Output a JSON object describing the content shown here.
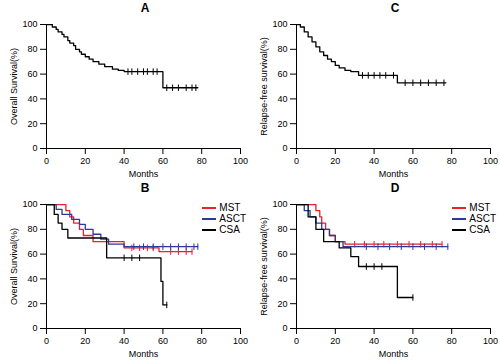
{
  "chart_data": [
    {
      "type": "line",
      "title": "A",
      "x_label": "Months",
      "y_label": "Overall Survival(%)",
      "xlim": [
        0,
        100
      ],
      "ylim": [
        0,
        100
      ],
      "xticks": [
        0,
        20,
        40,
        60,
        80,
        100
      ],
      "yticks": [
        0,
        20,
        40,
        60,
        80,
        100
      ],
      "series": [
        {
          "color": "#000000",
          "line_style": "step",
          "marker": "tick",
          "x": [
            0,
            3,
            5,
            6,
            8,
            9,
            11,
            12,
            14,
            15,
            17,
            18,
            20,
            22,
            24,
            27,
            30,
            34,
            37,
            40,
            60,
            78
          ],
          "values": [
            100,
            98,
            96,
            94,
            92,
            90,
            87,
            85,
            83,
            80,
            78,
            76,
            74,
            72,
            70,
            68,
            66,
            64,
            63,
            62,
            49,
            49
          ],
          "censored_x": [
            42,
            44,
            47,
            50,
            52,
            55,
            57,
            62,
            65,
            68,
            72,
            75,
            77
          ],
          "censored_values": [
            62,
            62,
            62,
            62,
            62,
            62,
            62,
            49,
            49,
            49,
            49,
            49,
            49
          ]
        }
      ]
    },
    {
      "type": "line",
      "title": "C",
      "x_label": "Months",
      "y_label": "Relapse-free survival(%)",
      "xlim": [
        0,
        100
      ],
      "ylim": [
        0,
        100
      ],
      "xticks": [
        0,
        20,
        40,
        60,
        80,
        100
      ],
      "yticks": [
        0,
        20,
        40,
        60,
        80,
        100
      ],
      "series": [
        {
          "color": "#000000",
          "line_style": "step",
          "marker": "tick",
          "x": [
            0,
            2,
            4,
            6,
            8,
            10,
            12,
            14,
            16,
            18,
            20,
            22,
            25,
            28,
            32,
            52,
            77
          ],
          "values": [
            100,
            98,
            94,
            90,
            86,
            82,
            78,
            75,
            72,
            70,
            67,
            65,
            63,
            62,
            59,
            53,
            53
          ],
          "censored_x": [
            34,
            37,
            40,
            43,
            46,
            50,
            56,
            60,
            64,
            68,
            72,
            76
          ],
          "censored_values": [
            59,
            59,
            59,
            59,
            59,
            59,
            53,
            53,
            53,
            53,
            53,
            53
          ]
        }
      ]
    },
    {
      "type": "line",
      "title": "B",
      "x_label": "Months",
      "y_label": "Overall Survival(%)",
      "legend": "top-right",
      "xlim": [
        0,
        100
      ],
      "ylim": [
        0,
        100
      ],
      "xticks": [
        0,
        20,
        40,
        60,
        80,
        100
      ],
      "yticks": [
        0,
        20,
        40,
        60,
        80,
        100
      ],
      "series": [
        {
          "name": "MST",
          "color": "#e8202a",
          "line_style": "step",
          "marker": "tick",
          "x": [
            0,
            10,
            12,
            14,
            17,
            19,
            24,
            30,
            40,
            58,
            75
          ],
          "values": [
            100,
            95,
            90,
            85,
            80,
            75,
            70,
            70,
            65,
            62,
            62
          ],
          "censored_x": [
            44,
            48,
            52,
            55,
            64,
            68,
            72,
            75
          ],
          "censored_values": [
            65,
            65,
            65,
            65,
            62,
            62,
            62,
            62
          ]
        },
        {
          "name": "ASCT",
          "color": "#2b3a9a",
          "line_style": "step",
          "marker": "tick",
          "x": [
            0,
            5,
            8,
            13,
            17,
            20,
            24,
            28,
            32,
            40,
            78
          ],
          "values": [
            100,
            96,
            92,
            88,
            84,
            80,
            76,
            72,
            68,
            66,
            66
          ],
          "censored_x": [
            45,
            50,
            55,
            60,
            64,
            68,
            72,
            76,
            78
          ],
          "censored_values": [
            66,
            66,
            66,
            66,
            66,
            66,
            66,
            66,
            66
          ]
        },
        {
          "name": "CSA",
          "color": "#000000",
          "line_style": "step",
          "marker": "tick",
          "x": [
            0,
            4,
            6,
            8,
            11,
            31,
            58,
            59,
            60,
            62
          ],
          "values": [
            100,
            92,
            85,
            80,
            73,
            57,
            57,
            38,
            19,
            19
          ],
          "censored_x": [
            40,
            44,
            48,
            62
          ],
          "censored_values": [
            57,
            57,
            57,
            19
          ]
        }
      ]
    },
    {
      "type": "line",
      "title": "D",
      "x_label": "Months",
      "y_label": "Relapse-free survival(%)",
      "legend": "top-right",
      "xlim": [
        0,
        100
      ],
      "ylim": [
        0,
        100
      ],
      "xticks": [
        0,
        20,
        40,
        60,
        80,
        100
      ],
      "yticks": [
        0,
        20,
        40,
        60,
        80,
        100
      ],
      "series": [
        {
          "name": "MST",
          "color": "#e8202a",
          "line_style": "step",
          "marker": "tick",
          "x": [
            0,
            10,
            12,
            13,
            15,
            17,
            20,
            25,
            75
          ],
          "values": [
            100,
            95,
            90,
            85,
            80,
            75,
            70,
            68,
            68
          ],
          "censored_x": [
            30,
            35,
            40,
            45,
            52,
            58,
            64,
            70,
            75
          ],
          "censored_values": [
            68,
            68,
            68,
            68,
            68,
            68,
            68,
            68,
            68
          ]
        },
        {
          "name": "ASCT",
          "color": "#2b3a9a",
          "line_style": "step",
          "marker": "tick",
          "x": [
            0,
            4,
            7,
            10,
            13,
            17,
            20,
            24,
            78
          ],
          "values": [
            100,
            95,
            90,
            85,
            80,
            75,
            70,
            66,
            66
          ],
          "censored_x": [
            36,
            42,
            48,
            54,
            60,
            66,
            72,
            78
          ],
          "censored_values": [
            66,
            66,
            66,
            66,
            66,
            66,
            66,
            66
          ]
        },
        {
          "name": "CSA",
          "color": "#000000",
          "line_style": "step",
          "marker": "tick",
          "x": [
            0,
            6,
            10,
            14,
            22,
            28,
            32,
            52,
            60
          ],
          "values": [
            100,
            90,
            80,
            70,
            65,
            58,
            50,
            25,
            25
          ],
          "censored_x": [
            36,
            40,
            44,
            60
          ],
          "censored_values": [
            50,
            50,
            50,
            25
          ]
        }
      ]
    }
  ]
}
